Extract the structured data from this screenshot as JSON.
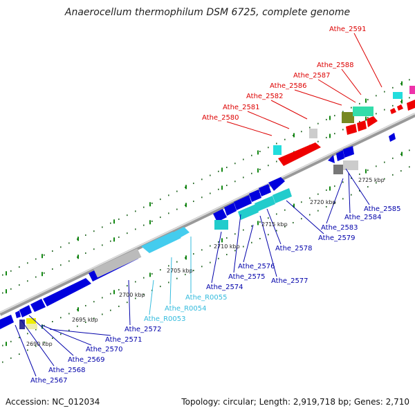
{
  "title": "Anaerocellum thermophilum DSM 6725, complete genome",
  "footer": {
    "accession_text": "Accession: NC_012034",
    "summary_text": "Topology: circular; Length: 2,919,718 bp; Genes: 2,710"
  },
  "colors": {
    "forward_label": "#dd0000",
    "reverse_label": "#0000aa",
    "rna_label": "#33bbdd",
    "cds_reverse": "#0000dd",
    "rna": "#22dddd",
    "trna": "#44ccee",
    "pseudo": "#bbbbbb",
    "cds_forward": "#ee0000",
    "axis": "#999999"
  },
  "kbp_ticks": [
    "2690 kbp",
    "2695 kbp",
    "2700 kbp",
    "2705 kbp",
    "2710 kbp",
    "2715 kbp",
    "2720 kbp",
    "2725 kbp"
  ],
  "forward_genes": [
    "Athe_2580",
    "Athe_2581",
    "Athe_2582",
    "Athe_2586",
    "Athe_2587",
    "Athe_2588",
    "Athe_2591"
  ],
  "reverse_genes": [
    "Athe_2567",
    "Athe_2568",
    "Athe_2569",
    "Athe_2570",
    "Athe_2571",
    "Athe_2572",
    "Athe_R0053",
    "Athe_R0054",
    "Athe_R0055",
    "Athe_2574",
    "Athe_2575",
    "Athe_2576",
    "Athe_2577",
    "Athe_2578",
    "Athe_2579",
    "Athe_2583",
    "Athe_2584",
    "Athe_2585"
  ]
}
